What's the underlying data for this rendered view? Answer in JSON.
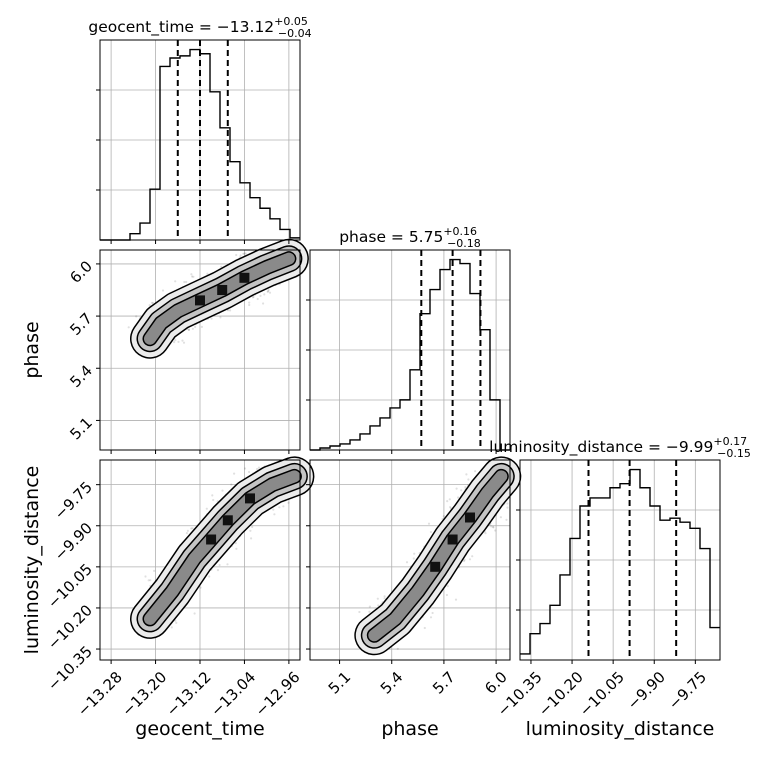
{
  "chart_data": {
    "type": "corner",
    "grid": true,
    "parameters": [
      "geocent_time",
      "phase",
      "luminosity_distance"
    ],
    "axis_labels": {
      "geocent_time": "geocent_time",
      "phase": "phase",
      "luminosity_distance": "luminosity_distance"
    },
    "ranges": {
      "geocent_time": [
        -13.3,
        -12.94
      ],
      "phase": [
        4.93,
        6.08
      ],
      "luminosity_distance": [
        -10.39,
        -9.66
      ]
    },
    "ticks": {
      "geocent_time": [
        -13.28,
        -13.2,
        -13.12,
        -13.04,
        -12.96
      ],
      "phase": [
        5.1,
        5.4,
        5.7,
        6.0
      ],
      "luminosity_distance": [
        -10.35,
        -10.2,
        -10.05,
        -9.9,
        -9.75
      ]
    },
    "tick_labels": {
      "geocent_time": [
        "−13.28",
        "−13.20",
        "−13.12",
        "−13.04",
        "−12.96"
      ],
      "phase": [
        "5.1",
        "5.4",
        "5.7",
        "6.0"
      ],
      "luminosity_distance": [
        "−10.35",
        "−10.20",
        "−10.05",
        "−9.90",
        "−9.75"
      ]
    },
    "titles": {
      "geocent_time": {
        "prefix": "geocent_time = −13.12",
        "sup": "+0.05",
        "sub": "−0.04"
      },
      "phase": {
        "prefix": "phase = 5.75",
        "sup": "+0.16",
        "sub": "−0.18"
      },
      "luminosity_distance": {
        "prefix": "luminosity_distance = −9.99",
        "sup": "+0.17",
        "sub": "−0.15"
      }
    },
    "quantiles": {
      "geocent_time": [
        -13.16,
        -13.12,
        -13.07
      ],
      "phase": [
        5.57,
        5.75,
        5.91
      ],
      "luminosity_distance": [
        -10.14,
        -9.99,
        -9.82
      ]
    },
    "histograms": {
      "geocent_time": {
        "edges": [
          -13.3,
          -13.282,
          -13.264,
          -13.246,
          -13.228,
          -13.21,
          -13.192,
          -13.174,
          -13.156,
          -13.138,
          -13.12,
          -13.102,
          -13.084,
          -13.066,
          -13.048,
          -13.03,
          -13.012,
          -12.994,
          -12.976,
          -12.958,
          -12.94
        ],
        "counts": [
          0,
          0,
          0,
          3,
          8,
          24,
          82,
          86,
          87,
          90,
          88,
          70,
          53,
          37,
          27,
          20,
          15,
          10,
          5,
          1
        ]
      },
      "phase": {
        "edges": [
          4.93,
          4.9875,
          5.045,
          5.1025,
          5.16,
          5.2175,
          5.275,
          5.3325,
          5.39,
          5.4475,
          5.505,
          5.5625,
          5.62,
          5.6775,
          5.735,
          5.7925,
          5.85,
          5.9075,
          5.965,
          6.0225,
          6.08
        ],
        "counts": [
          0,
          1,
          2,
          3,
          5,
          8,
          12,
          16,
          21,
          25,
          40,
          68,
          80,
          90,
          95,
          93,
          78,
          60,
          25,
          0
        ]
      },
      "luminosity_distance": {
        "edges": [
          -10.39,
          -10.3535,
          -10.317,
          -10.2805,
          -10.244,
          -10.2075,
          -10.171,
          -10.1345,
          -10.098,
          -10.0615,
          -10.025,
          -9.9885,
          -9.952,
          -9.9155,
          -9.879,
          -9.8425,
          -9.806,
          -9.7695,
          -9.733,
          -9.6965,
          -9.66
        ],
        "counts": [
          3,
          13,
          18,
          27,
          42,
          60,
          76,
          80,
          80,
          85,
          87,
          94,
          85,
          76,
          69,
          70,
          68,
          65,
          55,
          16
        ]
      }
    },
    "scatter_pairs": [
      {
        "x": "geocent_time",
        "y": "phase",
        "ridge": [
          [
            -13.21,
            5.57
          ],
          [
            -13.19,
            5.66
          ],
          [
            -13.16,
            5.73
          ],
          [
            -13.12,
            5.79
          ],
          [
            -13.08,
            5.85
          ],
          [
            -13.04,
            5.92
          ],
          [
            -13.0,
            5.98
          ],
          [
            -12.96,
            6.03
          ]
        ]
      },
      {
        "x": "geocent_time",
        "y": "luminosity_distance",
        "ridge": [
          [
            -13.21,
            -10.24
          ],
          [
            -13.17,
            -10.14
          ],
          [
            -13.13,
            -10.02
          ],
          [
            -13.1,
            -9.95
          ],
          [
            -13.07,
            -9.88
          ],
          [
            -13.03,
            -9.8
          ],
          [
            -12.99,
            -9.75
          ],
          [
            -12.95,
            -9.72
          ]
        ]
      },
      {
        "x": "phase",
        "y": "luminosity_distance",
        "ridge": [
          [
            5.3,
            -10.3
          ],
          [
            5.42,
            -10.24
          ],
          [
            5.55,
            -10.14
          ],
          [
            5.65,
            -10.05
          ],
          [
            5.75,
            -9.95
          ],
          [
            5.85,
            -9.87
          ],
          [
            5.95,
            -9.78
          ],
          [
            6.03,
            -9.72
          ]
        ]
      }
    ]
  }
}
